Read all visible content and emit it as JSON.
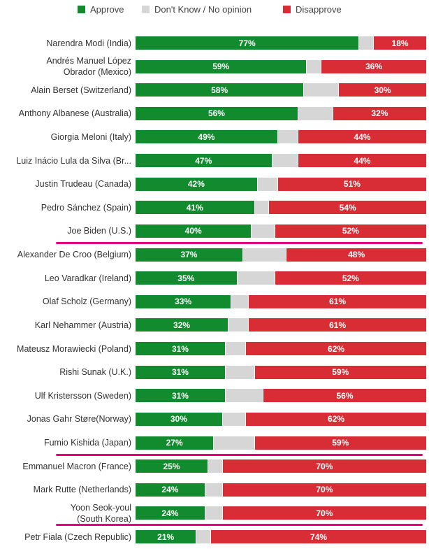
{
  "colors": {
    "approve": "#118b2e",
    "no_opinion": "#d6d6d6",
    "disapprove": "#d92d35",
    "highlight": "#e6007e"
  },
  "legend": {
    "approve": "Approve",
    "no_opinion": "Don't Know / No opinion",
    "disapprove": "Disapprove"
  },
  "chart_data": {
    "type": "bar",
    "orientation": "horizontal",
    "stacked": true,
    "unit": "%",
    "legend_position": "top",
    "xlim": [
      0,
      100
    ],
    "categories": [
      [
        "Narendra Modi (India)"
      ],
      [
        "Andrés Manuel López",
        "Obrador (Mexico)"
      ],
      [
        "Alain Berset (Switzerland)"
      ],
      [
        "Anthony Albanese (Australia)"
      ],
      [
        "Giorgia Meloni (Italy)"
      ],
      [
        "Luiz Inácio Lula da Silva (Br..."
      ],
      [
        "Justin Trudeau (Canada)"
      ],
      [
        "Pedro Sánchez (Spain)"
      ],
      [
        "Joe Biden (U.S.)"
      ],
      [
        "Alexander De Croo (Belgium)"
      ],
      [
        "Leo Varadkar (Ireland)"
      ],
      [
        "Olaf Scholz (Germany)"
      ],
      [
        "Karl Nehammer (Austria)"
      ],
      [
        "Mateusz Morawiecki (Poland)"
      ],
      [
        "Rishi Sunak (U.K.)"
      ],
      [
        "Ulf Kristersson (Sweden)"
      ],
      [
        "Jonas Gahr Støre(Norway)"
      ],
      [
        "Fumio Kishida (Japan)"
      ],
      [
        "Emmanuel Macron (France)"
      ],
      [
        "Mark Rutte (Netherlands)"
      ],
      [
        "Yoon Seok-youl",
        "(South Korea)"
      ],
      [
        "Petr Fiala (Czech Republic)"
      ]
    ],
    "approve": [
      77,
      59,
      58,
      56,
      49,
      47,
      42,
      41,
      40,
      37,
      35,
      33,
      32,
      31,
      31,
      31,
      30,
      27,
      25,
      24,
      24,
      21
    ],
    "no_opinion": [
      5,
      5,
      12,
      12,
      7,
      9,
      7,
      5,
      8,
      15,
      13,
      6,
      7,
      7,
      10,
      13,
      8,
      14,
      5,
      6,
      6,
      5
    ],
    "disapprove": [
      18,
      36,
      30,
      32,
      44,
      44,
      51,
      54,
      52,
      48,
      52,
      61,
      61,
      62,
      59,
      56,
      62,
      59,
      70,
      70,
      70,
      74
    ],
    "approve_labels": [
      "77%",
      "59%",
      "58%",
      "56%",
      "49%",
      "47%",
      "42%",
      "41%",
      "40%",
      "37%",
      "35%",
      "33%",
      "32%",
      "31%",
      "31%",
      "31%",
      "30%",
      "27%",
      "25%",
      "24%",
      "24%",
      "21%"
    ],
    "disapprove_labels": [
      "18%",
      "36%",
      "30%",
      "32%",
      "44%",
      "44%",
      "51%",
      "54%",
      "52%",
      "48%",
      "52%",
      "61%",
      "61%",
      "62%",
      "59%",
      "56%",
      "62%",
      "59%",
      "70%",
      "70%",
      "70%",
      "74%"
    ],
    "highlighted_rows": [
      8,
      17,
      20
    ]
  }
}
